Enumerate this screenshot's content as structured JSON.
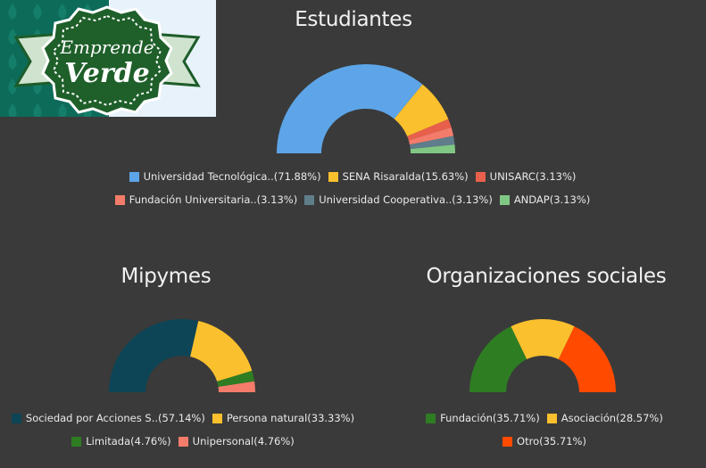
{
  "logo": {
    "line1": "Emprende",
    "line2": "Verde"
  },
  "chart_data": [
    {
      "id": "estudiantes",
      "type": "pie",
      "variant": "half-donut",
      "title": "Estudiantes",
      "legend_rows": [
        3,
        3
      ],
      "series": [
        {
          "label": "Universidad Tecnológica..(71.88%)",
          "value": 71.88,
          "color": "#5da5e8"
        },
        {
          "label": "SENA Risaralda(15.63%)",
          "value": 15.63,
          "color": "#fbc02d"
        },
        {
          "label": "UNISARC(3.13%)",
          "value": 3.13,
          "color": "#e8604c"
        },
        {
          "label": "Fundación Universitaria..(3.13%)",
          "value": 3.13,
          "color": "#f47c6b"
        },
        {
          "label": "Universidad Cooperativa..(3.13%)",
          "value": 3.13,
          "color": "#607d8b"
        },
        {
          "label": "ANDAP(3.13%)",
          "value": 3.13,
          "color": "#81c784"
        }
      ]
    },
    {
      "id": "mipymes",
      "type": "pie",
      "variant": "half-donut",
      "title": "Mipymes",
      "legend_rows": [
        2,
        2
      ],
      "series": [
        {
          "label": "Sociedad por Acciones S..(57.14%)",
          "value": 57.14,
          "color": "#0d4556"
        },
        {
          "label": "Persona natural(33.33%)",
          "value": 33.33,
          "color": "#fbc02d"
        },
        {
          "label": "Limitada(4.76%)",
          "value": 4.76,
          "color": "#2e7d23"
        },
        {
          "label": "Unipersonal(4.76%)",
          "value": 4.76,
          "color": "#f47c6b"
        }
      ]
    },
    {
      "id": "organizaciones",
      "type": "pie",
      "variant": "half-donut",
      "title": "Organizaciones sociales",
      "legend_rows": [
        2,
        1
      ],
      "series": [
        {
          "label": "Fundación(35.71%)",
          "value": 35.71,
          "color": "#2e7d23"
        },
        {
          "label": "Asociación(28.57%)",
          "value": 28.57,
          "color": "#fbc02d"
        },
        {
          "label": "Otro(35.71%)",
          "value": 35.71,
          "color": "#ff4a00"
        }
      ]
    }
  ]
}
